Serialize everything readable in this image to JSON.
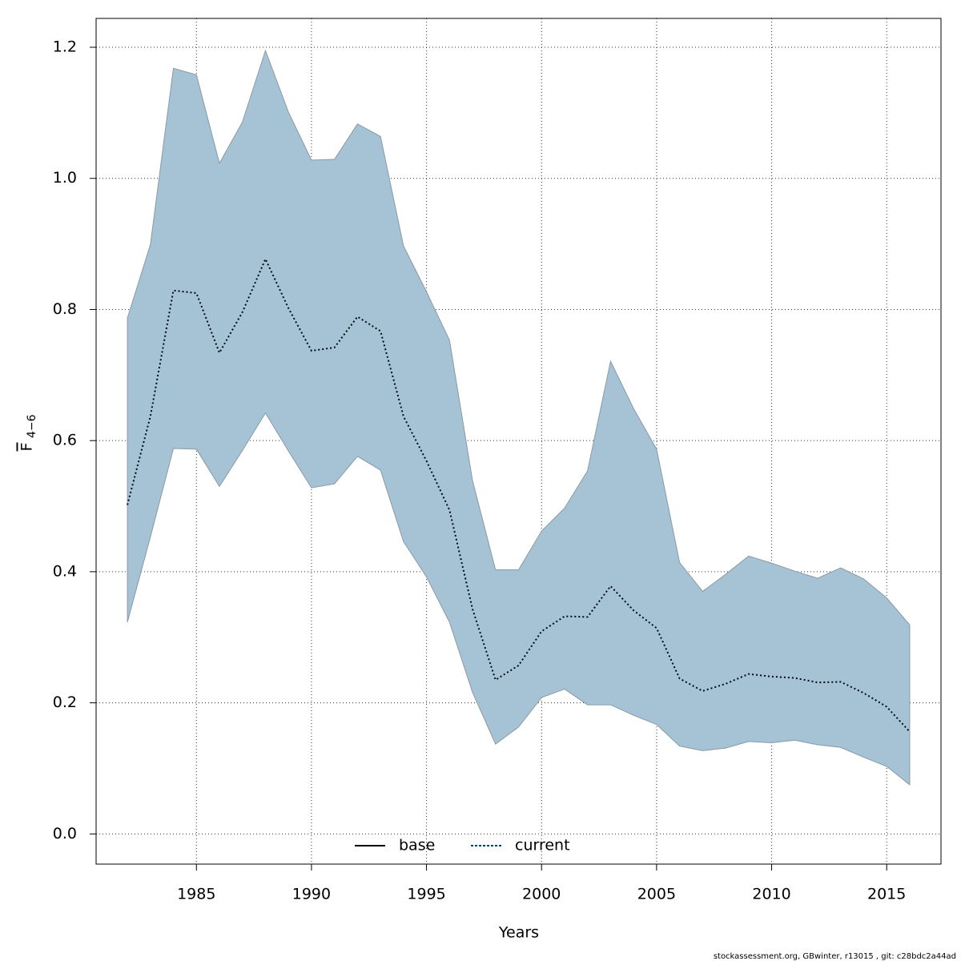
{
  "chart_data": {
    "type": "band-line",
    "xlabel": "Years",
    "ylabel": "F",
    "ylabel_sub": "4−6",
    "footer": "stockassessment.org, GBwinter, r13015 , git: c28bdc2a44ad",
    "x": [
      1982,
      1983,
      1984,
      1985,
      1986,
      1987,
      1988,
      1989,
      1990,
      1991,
      1992,
      1993,
      1994,
      1995,
      1996,
      1997,
      1998,
      1999,
      2000,
      2001,
      2002,
      2003,
      2004,
      2005,
      2006,
      2007,
      2008,
      2009,
      2010,
      2011,
      2012,
      2013,
      2014,
      2015,
      2016
    ],
    "band": {
      "color": "#a5c3d4",
      "upper": [
        0.787,
        0.899,
        1.168,
        1.158,
        1.023,
        1.086,
        1.195,
        1.101,
        1.028,
        1.029,
        1.083,
        1.064,
        0.897,
        0.827,
        0.753,
        0.539,
        0.403,
        0.403,
        0.462,
        0.497,
        0.554,
        0.721,
        0.649,
        0.587,
        0.414,
        0.37,
        0.396,
        0.424,
        0.413,
        0.401,
        0.39,
        0.406,
        0.389,
        0.36,
        0.319
      ],
      "lower": [
        0.323,
        0.453,
        0.588,
        0.587,
        0.53,
        0.585,
        0.642,
        0.584,
        0.528,
        0.534,
        0.576,
        0.555,
        0.446,
        0.392,
        0.323,
        0.216,
        0.137,
        0.163,
        0.208,
        0.221,
        0.197,
        0.197,
        0.181,
        0.167,
        0.134,
        0.127,
        0.131,
        0.141,
        0.139,
        0.143,
        0.136,
        0.132,
        0.117,
        0.103,
        0.075
      ]
    },
    "series": [
      {
        "name": "current",
        "color": "#000814",
        "dash": "2 3",
        "values": [
          0.502,
          0.637,
          0.829,
          0.825,
          0.734,
          0.796,
          0.877,
          0.802,
          0.737,
          0.742,
          0.789,
          0.767,
          0.637,
          0.569,
          0.494,
          0.343,
          0.235,
          0.257,
          0.309,
          0.332,
          0.331,
          0.378,
          0.341,
          0.314,
          0.237,
          0.218,
          0.229,
          0.244,
          0.24,
          0.238,
          0.231,
          0.232,
          0.215,
          0.194,
          0.156
        ]
      }
    ],
    "legend": [
      {
        "name": "base",
        "color": "#000000",
        "dash": "none"
      },
      {
        "name": "current",
        "color": "#00466e",
        "dash": "3 2"
      }
    ],
    "xlim": [
      1980.64,
      2017.36
    ],
    "ylim": [
      -0.046,
      1.244
    ],
    "xticks": [
      1985,
      1990,
      1995,
      2000,
      2005,
      2010,
      2015
    ],
    "yticks": [
      {
        "value": 0,
        "label": "0.0"
      },
      0.2,
      0.4,
      0.6,
      0.8,
      {
        "value": 1,
        "label": "1.0"
      },
      1.2
    ],
    "grid": true
  }
}
